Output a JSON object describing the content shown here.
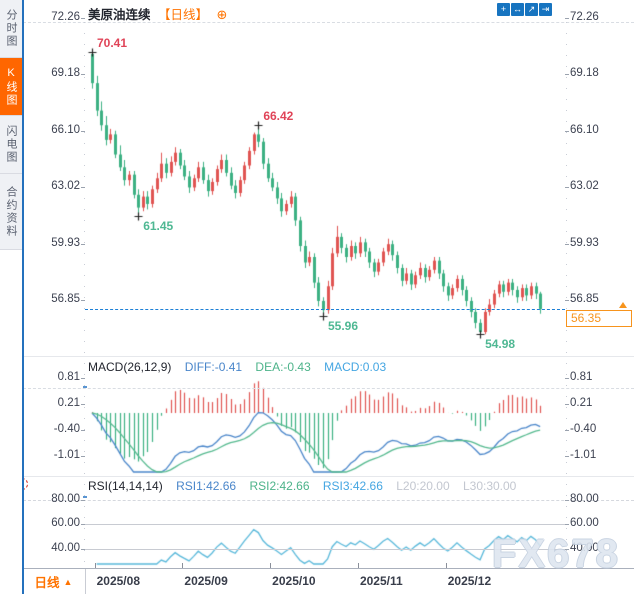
{
  "header": {
    "title": "美原油连续",
    "period_tag": "【日线】",
    "plus_icon": "⊕"
  },
  "toolbar": {
    "icons": [
      {
        "name": "crosshair-icon",
        "glyph": "+"
      },
      {
        "name": "fit-range-icon",
        "glyph": "↔"
      },
      {
        "name": "scale-icon",
        "glyph": "↗"
      },
      {
        "name": "pan-right-icon",
        "glyph": "⇥"
      }
    ]
  },
  "sidebar": {
    "tabs": [
      {
        "label": "分时图",
        "active": false
      },
      {
        "label": "K线图",
        "active": true
      },
      {
        "label": "闪电图",
        "active": false
      },
      {
        "label": "合约资料",
        "active": false
      }
    ]
  },
  "macd_panel": {
    "title": "MACD(26,12,9)",
    "diff_label": "DIFF:-0.41",
    "dea_label": "DEA:-0.43",
    "macd_label": "MACD:0.03",
    "axis_labels": [
      "0.81",
      "0.21",
      "-0.40",
      "-1.01"
    ]
  },
  "rsi_panel": {
    "title": "RSI(14,14,14)",
    "rsi1_label": "RSI1:42.66",
    "rsi2_label": "RSI2:42.66",
    "rsi3_label": "RSI3:42.66",
    "l20_label": "L20:20.00",
    "l30_label": "L30:30.00",
    "axis_labels": [
      "80.00",
      "60.00",
      "40.00"
    ]
  },
  "bottom_bar": {
    "period_button": "日线",
    "period_arrow": "▲"
  },
  "watermark": "FX678",
  "colors": {
    "up": "#e05452",
    "down": "#3cb183",
    "anno_up": "#e04458",
    "anno_down": "#4fb893",
    "diff_line": "#4a86ca",
    "dea_line": "#54b98e",
    "rsi_line": "#58b8da",
    "accent_orange": "#ff7300",
    "price_box": "#f7941d",
    "current_line": "#1c7fd6",
    "marker": "#222222"
  },
  "chart_data": {
    "type": "candlestick",
    "symbol": "美原油连续",
    "period": "日线",
    "price_axis_labels": [
      "72.26",
      "69.18",
      "66.10",
      "63.02",
      "59.93",
      "56.85"
    ],
    "current_price": "56.35",
    "x_axis": {
      "labels": [
        "2025/08",
        "2025/09",
        "2025/10",
        "2025/11",
        "2025/12"
      ],
      "tick_candle_indices": [
        1,
        20,
        39,
        58,
        77
      ]
    },
    "annotations": [
      {
        "text": "70.41",
        "price": 70.41,
        "index": 0,
        "side": "high",
        "kind": "up"
      },
      {
        "text": "61.45",
        "price": 61.45,
        "index": 10,
        "side": "low",
        "kind": "down"
      },
      {
        "text": "66.42",
        "price": 66.42,
        "index": 36,
        "side": "high",
        "kind": "up"
      },
      {
        "text": "55.96",
        "price": 55.96,
        "index": 50,
        "side": "low",
        "kind": "down"
      },
      {
        "text": "54.98",
        "price": 54.98,
        "index": 84,
        "side": "low",
        "kind": "down"
      }
    ],
    "candles_ohlc": [
      [
        70.3,
        70.41,
        68.4,
        68.7
      ],
      [
        68.7,
        69.1,
        66.9,
        67.2
      ],
      [
        67.2,
        67.7,
        66.1,
        66.4
      ],
      [
        66.4,
        66.9,
        65.3,
        65.6
      ],
      [
        65.6,
        66.2,
        65.4,
        65.9
      ],
      [
        65.9,
        66.1,
        64.6,
        64.8
      ],
      [
        64.8,
        65.3,
        63.9,
        64.1
      ],
      [
        64.1,
        64.5,
        63.1,
        63.4
      ],
      [
        63.4,
        63.9,
        63.1,
        63.7
      ],
      [
        63.7,
        63.9,
        62.4,
        62.6
      ],
      [
        62.6,
        62.9,
        61.45,
        61.9
      ],
      [
        61.9,
        62.8,
        61.7,
        62.5
      ],
      [
        62.5,
        62.8,
        61.8,
        62.1
      ],
      [
        62.1,
        63.1,
        61.9,
        62.9
      ],
      [
        62.9,
        63.8,
        62.7,
        63.5
      ],
      [
        63.5,
        64.9,
        63.3,
        64.3
      ],
      [
        64.3,
        64.6,
        63.5,
        63.8
      ],
      [
        63.8,
        64.7,
        63.6,
        64.4
      ],
      [
        64.4,
        65.2,
        64.2,
        64.9
      ],
      [
        64.9,
        65.1,
        64.0,
        64.2
      ],
      [
        64.2,
        64.5,
        63.4,
        63.6
      ],
      [
        63.6,
        63.9,
        62.7,
        63.0
      ],
      [
        63.0,
        63.7,
        62.8,
        63.5
      ],
      [
        63.5,
        64.4,
        63.3,
        64.1
      ],
      [
        64.1,
        64.4,
        63.2,
        63.4
      ],
      [
        63.4,
        63.7,
        62.5,
        62.8
      ],
      [
        62.8,
        63.5,
        62.6,
        63.3
      ],
      [
        63.3,
        64.2,
        63.1,
        64.0
      ],
      [
        64.0,
        64.8,
        63.8,
        64.5
      ],
      [
        64.5,
        64.8,
        63.6,
        63.8
      ],
      [
        63.8,
        64.1,
        62.9,
        63.1
      ],
      [
        63.1,
        63.4,
        62.4,
        62.7
      ],
      [
        62.7,
        63.6,
        62.5,
        63.4
      ],
      [
        63.4,
        64.4,
        63.2,
        64.2
      ],
      [
        64.2,
        65.2,
        64.0,
        65.0
      ],
      [
        65.0,
        66.0,
        64.8,
        65.9
      ],
      [
        65.9,
        66.42,
        65.2,
        65.5
      ],
      [
        65.5,
        65.7,
        64.0,
        64.3
      ],
      [
        64.3,
        64.6,
        63.3,
        63.5
      ],
      [
        63.5,
        63.8,
        62.8,
        63.0
      ],
      [
        63.0,
        63.3,
        62.1,
        62.4
      ],
      [
        62.4,
        62.7,
        61.4,
        61.7
      ],
      [
        61.7,
        62.3,
        61.5,
        62.1
      ],
      [
        62.1,
        62.8,
        61.9,
        62.5
      ],
      [
        62.5,
        62.7,
        60.9,
        61.2
      ],
      [
        61.2,
        61.4,
        59.5,
        59.8
      ],
      [
        59.8,
        60.1,
        58.6,
        58.9
      ],
      [
        58.9,
        59.5,
        58.7,
        59.2
      ],
      [
        59.2,
        59.4,
        57.5,
        57.8
      ],
      [
        57.8,
        58.1,
        56.5,
        56.8
      ],
      [
        56.8,
        57.0,
        55.96,
        56.3
      ],
      [
        56.3,
        57.9,
        56.1,
        57.6
      ],
      [
        57.6,
        59.7,
        57.4,
        59.4
      ],
      [
        59.4,
        60.9,
        59.2,
        60.3
      ],
      [
        60.3,
        60.5,
        59.4,
        59.7
      ],
      [
        59.7,
        59.9,
        58.9,
        59.2
      ],
      [
        59.2,
        60.1,
        59.0,
        59.8
      ],
      [
        59.8,
        60.0,
        59.1,
        59.4
      ],
      [
        59.4,
        60.3,
        59.2,
        60.0
      ],
      [
        60.0,
        60.2,
        59.2,
        59.5
      ],
      [
        59.5,
        59.7,
        58.6,
        58.9
      ],
      [
        58.9,
        59.1,
        58.1,
        58.4
      ],
      [
        58.4,
        59.1,
        58.2,
        58.9
      ],
      [
        58.9,
        59.7,
        58.7,
        59.5
      ],
      [
        59.5,
        60.2,
        59.3,
        59.9
      ],
      [
        59.9,
        60.1,
        59.0,
        59.3
      ],
      [
        59.3,
        59.5,
        58.3,
        58.6
      ],
      [
        58.6,
        58.8,
        57.6,
        57.9
      ],
      [
        57.9,
        58.6,
        57.7,
        58.3
      ],
      [
        58.3,
        58.5,
        57.4,
        57.7
      ],
      [
        57.7,
        58.4,
        57.5,
        58.2
      ],
      [
        58.2,
        58.9,
        58.0,
        58.6
      ],
      [
        58.6,
        58.8,
        57.8,
        58.1
      ],
      [
        58.1,
        58.7,
        57.9,
        58.5
      ],
      [
        58.5,
        59.2,
        58.3,
        59.0
      ],
      [
        59.0,
        59.2,
        58.0,
        58.3
      ],
      [
        58.3,
        58.5,
        57.3,
        57.6
      ],
      [
        57.6,
        57.8,
        56.8,
        57.1
      ],
      [
        57.1,
        57.7,
        56.9,
        57.5
      ],
      [
        57.5,
        58.2,
        57.3,
        58.0
      ],
      [
        58.0,
        58.2,
        57.1,
        57.4
      ],
      [
        57.4,
        57.6,
        56.5,
        56.8
      ],
      [
        56.8,
        57.0,
        55.9,
        56.2
      ],
      [
        56.2,
        56.4,
        55.3,
        55.6
      ],
      [
        55.6,
        55.8,
        54.98,
        55.1
      ],
      [
        55.1,
        56.4,
        54.98,
        56.2
      ],
      [
        56.2,
        56.9,
        56.0,
        56.6
      ],
      [
        56.6,
        57.4,
        56.4,
        57.2
      ],
      [
        57.2,
        57.9,
        57.0,
        57.7
      ],
      [
        57.7,
        57.9,
        57.0,
        57.3
      ],
      [
        57.3,
        58.0,
        57.1,
        57.8
      ],
      [
        57.8,
        58.0,
        57.1,
        57.4
      ],
      [
        57.4,
        57.6,
        56.7,
        57.0
      ],
      [
        57.0,
        57.7,
        56.8,
        57.5
      ],
      [
        57.5,
        57.7,
        56.8,
        57.1
      ],
      [
        57.1,
        57.8,
        56.9,
        57.6
      ],
      [
        57.6,
        57.8,
        56.9,
        57.2
      ],
      [
        57.2,
        57.3,
        56.1,
        56.35
      ]
    ],
    "indicators": {
      "macd": {
        "params": [
          26,
          12,
          9
        ],
        "display": {
          "diff": -0.41,
          "dea": -0.43,
          "macd": 0.03
        },
        "axis_labels": [
          "0.81",
          "0.21",
          "-0.40",
          "-1.01"
        ]
      },
      "rsi": {
        "params": [
          14,
          14,
          14
        ],
        "display": {
          "rsi1": 42.66,
          "rsi2": 42.66,
          "rsi3": 42.66,
          "l20": 20.0,
          "l30": 30.0
        },
        "axis_labels": [
          "80.00",
          "60.00",
          "40.00"
        ]
      }
    }
  }
}
